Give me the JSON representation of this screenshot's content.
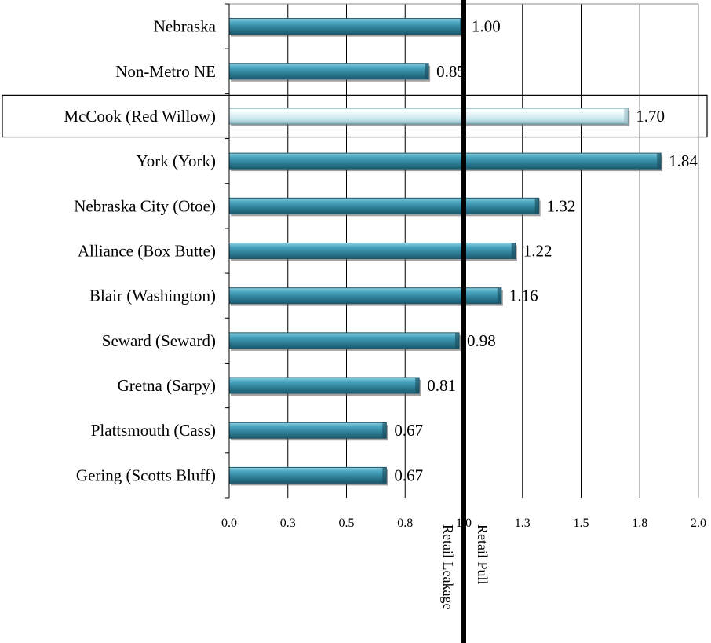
{
  "chart_data": {
    "type": "bar",
    "orientation": "horizontal",
    "categories": [
      "Nebraska",
      "Non-Metro NE",
      "McCook (Red Willow)",
      "York (York)",
      "Nebraska City (Otoe)",
      "Alliance (Box Butte)",
      "Blair (Washington)",
      "Seward (Seward)",
      "Gretna (Sarpy)",
      "Plattsmouth (Cass)",
      "Gering (Scotts Bluff)"
    ],
    "values": [
      1.0,
      0.85,
      1.7,
      1.84,
      1.32,
      1.22,
      1.16,
      0.98,
      0.81,
      0.67,
      0.67
    ],
    "value_labels": [
      "1.00",
      "0.85",
      "1.70",
      "1.84",
      "1.32",
      "1.22",
      "1.16",
      "0.98",
      "0.81",
      "0.67",
      "0.67"
    ],
    "highlighted_category": "McCook (Red Willow)",
    "xlim": [
      0.0,
      2.0
    ],
    "x_tick_values": [
      0.0,
      0.25,
      0.5,
      0.75,
      1.0,
      1.25,
      1.5,
      1.75,
      2.0
    ],
    "x_tick_labels": [
      "0.0",
      "0.3",
      "0.5",
      "0.8",
      "1.0",
      "1.3",
      "1.5",
      "1.8",
      "2.0"
    ],
    "reference_line": 1.0,
    "reference_labels": {
      "left": "Retail Leakage",
      "right": "Retail Pull"
    },
    "grid": "vertical",
    "colors": {
      "bar": "#3a8fa8",
      "bar_highlight": "#dff1f5",
      "reference_line": "#000000"
    }
  }
}
